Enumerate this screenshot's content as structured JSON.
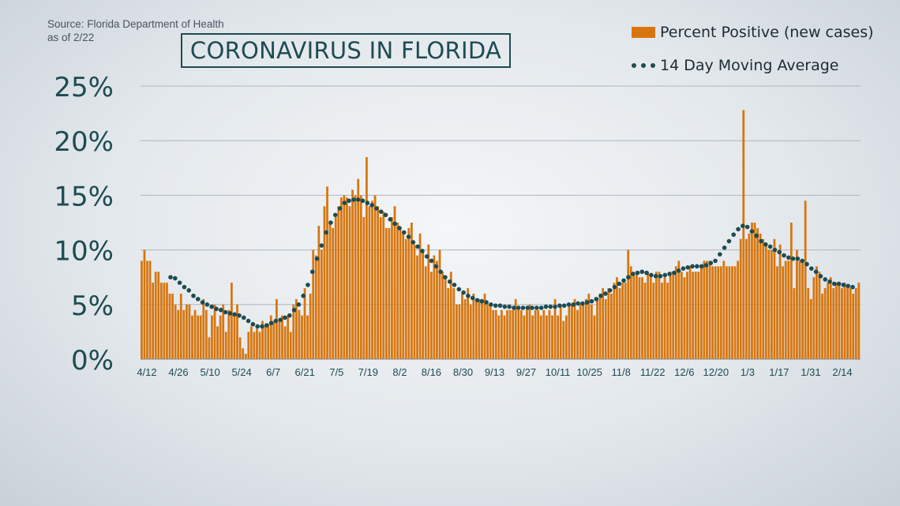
{
  "source_lines": [
    "Source: Florida Department of Health",
    "as of 2/22"
  ],
  "title": "CORONAVIRUS IN FLORIDA",
  "colors": {
    "bars": "#d7760f",
    "average": "#1e4b52",
    "axis_text": "#1e4b52",
    "grid": "#aeb6bd"
  },
  "chart_data": {
    "type": "bar",
    "title": "CORONAVIRUS IN FLORIDA",
    "xlabel": "",
    "ylabel": "",
    "ylim": [
      0,
      25
    ],
    "yticks": [
      0,
      5,
      10,
      15,
      20,
      25
    ],
    "ytick_labels": [
      "0%",
      "5%",
      "10%",
      "15%",
      "20%",
      "25%"
    ],
    "x_tick_labels": [
      "4/12",
      "4/26",
      "5/10",
      "5/24",
      "6/7",
      "6/21",
      "7/5",
      "7/19",
      "8/2",
      "8/16",
      "8/30",
      "9/13",
      "9/27",
      "10/11",
      "10/25",
      "11/8",
      "11/22",
      "12/6",
      "12/20",
      "1/3",
      "1/17",
      "1/31",
      "2/14"
    ],
    "grid": true,
    "legend_placement": "top-right",
    "series": [
      {
        "name": "Percent Positive (new cases)",
        "type": "bar",
        "values": [
          9.0,
          10.0,
          9.0,
          9.0,
          7.0,
          8.0,
          8.0,
          7.0,
          7.0,
          7.0,
          6.0,
          6.0,
          5.0,
          4.5,
          6.0,
          4.5,
          5.0,
          5.0,
          4.0,
          4.5,
          4.0,
          4.0,
          5.5,
          4.5,
          2.0,
          4.0,
          5.0,
          3.0,
          4.0,
          5.0,
          2.5,
          4.5,
          7.0,
          4.0,
          5.0,
          2.0,
          1.0,
          0.5,
          2.5,
          3.0,
          2.5,
          2.8,
          2.5,
          3.5,
          3.0,
          3.2,
          4.0,
          3.5,
          5.5,
          3.5,
          4.0,
          3.0,
          4.0,
          2.5,
          5.0,
          5.5,
          4.5,
          4.0,
          6.5,
          4.0,
          6.0,
          10.0,
          9.5,
          12.2,
          10.0,
          14.0,
          15.8,
          12.5,
          12.0,
          13.0,
          14.0,
          14.8,
          15.0,
          14.8,
          14.0,
          15.5,
          15.0,
          16.5,
          15.0,
          13.0,
          18.5,
          14.0,
          14.5,
          15.0,
          14.0,
          13.0,
          13.5,
          12.0,
          12.0,
          13.0,
          14.0,
          12.5,
          12.0,
          11.5,
          11.0,
          12.0,
          12.5,
          10.5,
          9.5,
          11.5,
          10.0,
          8.5,
          10.5,
          8.0,
          9.5,
          9.0,
          10.0,
          8.0,
          7.5,
          6.5,
          8.0,
          6.5,
          5.0,
          5.0,
          6.0,
          5.5,
          6.5,
          5.0,
          6.0,
          5.5,
          5.5,
          5.5,
          6.0,
          5.0,
          5.0,
          4.5,
          4.5,
          4.0,
          4.5,
          4.0,
          4.5,
          4.5,
          4.5,
          5.5,
          4.5,
          4.5,
          4.0,
          4.5,
          5.0,
          4.0,
          4.5,
          4.5,
          4.0,
          4.5,
          4.0,
          4.5,
          4.0,
          5.5,
          4.0,
          5.0,
          3.5,
          4.0,
          5.0,
          5.0,
          5.5,
          4.5,
          5.0,
          5.0,
          5.5,
          6.0,
          5.0,
          4.0,
          5.5,
          6.0,
          6.5,
          5.5,
          6.5,
          6.0,
          7.0,
          7.5,
          6.5,
          7.0,
          7.0,
          10.0,
          8.5,
          8.0,
          8.0,
          7.5,
          7.5,
          7.0,
          8.0,
          7.5,
          7.0,
          8.0,
          8.0,
          7.0,
          7.5,
          7.0,
          8.0,
          8.0,
          8.5,
          9.0,
          8.0,
          7.5,
          8.0,
          8.5,
          8.0,
          8.0,
          8.0,
          8.5,
          9.0,
          9.0,
          9.0,
          8.5,
          8.5,
          8.5,
          8.5,
          9.0,
          8.5,
          8.5,
          8.5,
          8.5,
          9.0,
          11.0,
          22.8,
          11.0,
          11.5,
          12.5,
          12.5,
          12.0,
          11.5,
          11.0,
          10.5,
          10.0,
          10.0,
          11.0,
          8.5,
          10.5,
          8.5,
          9.0,
          9.0,
          12.5,
          6.5,
          10.0,
          9.0,
          9.0,
          14.5,
          6.5,
          5.5,
          7.5,
          8.5,
          8.0,
          6.0,
          6.5,
          7.0,
          7.5,
          6.5,
          7.0,
          7.0,
          6.5,
          7.0,
          6.5,
          6.5,
          6.0,
          6.5,
          7.0
        ]
      },
      {
        "name": "14 Day Moving Average",
        "type": "line",
        "style": "dotted",
        "values": [
          7.5,
          7.4,
          7.0,
          6.6,
          6.3,
          5.8,
          5.5,
          5.2,
          5.0,
          4.8,
          4.6,
          4.5,
          4.3,
          4.2,
          4.1,
          4.0,
          3.8,
          3.5,
          3.2,
          3.0,
          3.0,
          3.1,
          3.3,
          3.5,
          3.6,
          3.8,
          4.0,
          4.5,
          5.0,
          5.8,
          6.8,
          8.0,
          9.2,
          10.4,
          11.6,
          12.5,
          13.2,
          13.8,
          14.3,
          14.5,
          14.6,
          14.6,
          14.5,
          14.3,
          14.1,
          13.8,
          13.5,
          13.2,
          12.8,
          12.4,
          12.0,
          11.6,
          11.2,
          10.7,
          10.3,
          9.9,
          9.4,
          9.0,
          8.5,
          8.0,
          7.5,
          7.1,
          6.8,
          6.4,
          6.1,
          5.8,
          5.6,
          5.4,
          5.3,
          5.2,
          5.0,
          4.9,
          4.9,
          4.8,
          4.8,
          4.7,
          4.7,
          4.7,
          4.7,
          4.7,
          4.7,
          4.7,
          4.8,
          4.8,
          4.8,
          4.9,
          4.9,
          5.0,
          5.0,
          5.1,
          5.1,
          5.2,
          5.3,
          5.5,
          5.8,
          6.0,
          6.3,
          6.6,
          6.9,
          7.2,
          7.5,
          7.8,
          7.9,
          8.0,
          7.9,
          7.7,
          7.6,
          7.6,
          7.7,
          7.8,
          7.9,
          8.1,
          8.3,
          8.4,
          8.5,
          8.5,
          8.5,
          8.6,
          8.8,
          9.0,
          9.6,
          10.2,
          10.8,
          11.4,
          11.9,
          12.2,
          12.1,
          11.7,
          11.3,
          10.8,
          10.5,
          10.3,
          10.0,
          9.8,
          9.5,
          9.3,
          9.2,
          9.2,
          9.0,
          8.7,
          8.3,
          8.0,
          7.6,
          7.3,
          7.1,
          6.9,
          6.9,
          6.8,
          6.7,
          6.6
        ]
      }
    ]
  }
}
